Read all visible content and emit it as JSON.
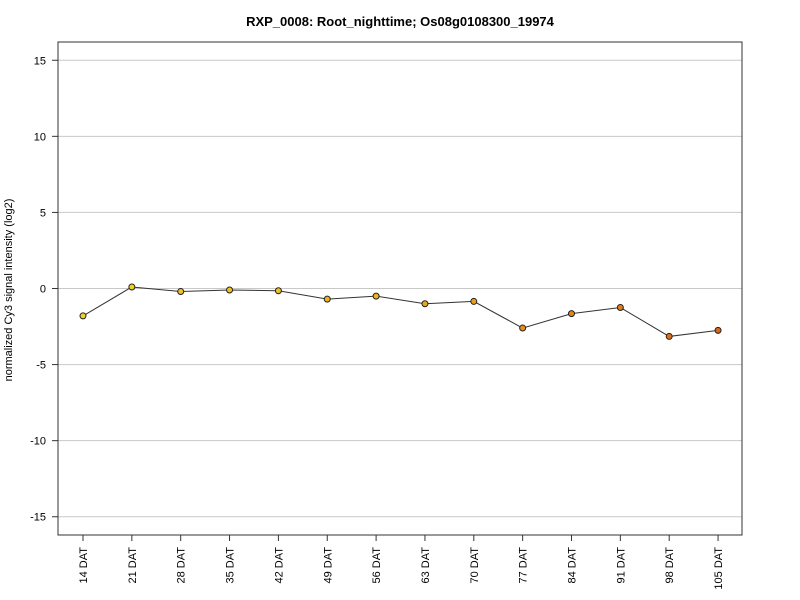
{
  "chart_data": {
    "type": "line",
    "title": "RXP_0008: Root_nighttime; Os08g0108300_19974",
    "xlabel": "",
    "ylabel": "normalized Cy3 signal intensity (log2)",
    "categories": [
      "14 DAT",
      "21 DAT",
      "28 DAT",
      "35 DAT",
      "42 DAT",
      "49 DAT",
      "56 DAT",
      "63 DAT",
      "70 DAT",
      "77 DAT",
      "84 DAT",
      "91 DAT",
      "98 DAT",
      "105 DAT"
    ],
    "series": [
      {
        "values": [
          -1.8,
          0.1,
          -0.2,
          -0.1,
          -0.15,
          -0.7,
          -0.5,
          -1.0,
          -0.85,
          -2.6,
          -1.65,
          -1.25,
          -3.15,
          -2.75
        ],
        "point_colors": [
          "#f2d21f",
          "#f2d21f",
          "#efc21e",
          "#efc21e",
          "#efc21e",
          "#ecb41d",
          "#ecb41d",
          "#eaa61c",
          "#e8a01b",
          "#e68e1a",
          "#e48619",
          "#e27e18",
          "#df6e17",
          "#dd6616"
        ]
      }
    ],
    "yticks": [
      -15,
      -10,
      -5,
      0,
      5,
      10,
      15
    ],
    "ylim": [
      -16.2,
      16.2
    ],
    "grid": "horizontal",
    "legend": "none"
  }
}
